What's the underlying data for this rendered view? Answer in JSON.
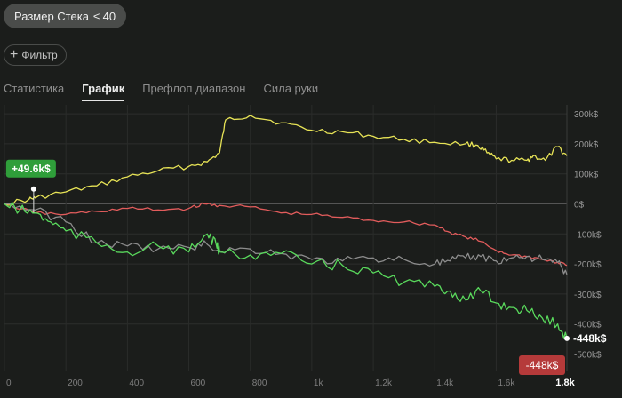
{
  "filter_pill": {
    "label": "Размер Стека",
    "op": "≤ 40"
  },
  "filter_button": {
    "icon": "plus-icon",
    "label": "Фильтр"
  },
  "tabs": [
    {
      "label": "Статистика",
      "active": false
    },
    {
      "label": "График",
      "active": true
    },
    {
      "label": "Префлоп диапазон",
      "active": false
    },
    {
      "label": "Сила руки",
      "active": false
    }
  ],
  "chart_data": {
    "type": "line",
    "x_ticks": [
      "0",
      "200",
      "400",
      "600",
      "800",
      "1k",
      "1.2k",
      "1.4k",
      "1.6k"
    ],
    "x_end_label": "1.8k",
    "y_ticks": [
      "300k$",
      "200k$",
      "100k$",
      "0$",
      "-100k$",
      "-200k$",
      "-300k$",
      "-400k$",
      "-500k$"
    ],
    "xlim": [
      0,
      1830
    ],
    "ylim": [
      -540,
      330
    ],
    "colors": {
      "yellow": "#e7e356",
      "red": "#e25c5c",
      "gray": "#8c8c8c",
      "green": "#59d95c",
      "badge_green": "#2f9e3a",
      "badge_red": "#b53a3a"
    },
    "series": [
      {
        "name": "yellow",
        "x": [
          0,
          80,
          100,
          200,
          300,
          400,
          500,
          600,
          660,
          700,
          720,
          800,
          900,
          1000,
          1100,
          1200,
          1300,
          1400,
          1500,
          1540,
          1570,
          1600,
          1650,
          1700,
          1720,
          1760,
          1800,
          1830
        ],
        "y": [
          0,
          15,
          20,
          40,
          60,
          90,
          110,
          125,
          140,
          170,
          280,
          295,
          270,
          245,
          240,
          225,
          215,
          205,
          200,
          195,
          170,
          150,
          145,
          145,
          160,
          145,
          190,
          160
        ]
      },
      {
        "name": "red",
        "x": [
          0,
          100,
          200,
          300,
          400,
          500,
          600,
          650,
          700,
          800,
          900,
          1000,
          1100,
          1200,
          1300,
          1400,
          1450,
          1500,
          1550,
          1600,
          1650,
          1700,
          1750,
          1800,
          1830
        ],
        "y": [
          0,
          -30,
          -35,
          -25,
          -15,
          -20,
          -15,
          0,
          -5,
          -10,
          -30,
          -35,
          -45,
          -55,
          -60,
          -70,
          -95,
          -110,
          -125,
          -155,
          -170,
          -175,
          -185,
          -195,
          -205
        ]
      },
      {
        "name": "gray",
        "x": [
          0,
          100,
          200,
          300,
          400,
          500,
          600,
          660,
          700,
          800,
          900,
          1000,
          1100,
          1200,
          1300,
          1400,
          1450,
          1500,
          1550,
          1600,
          1650,
          1700,
          1750,
          1800,
          1830
        ],
        "y": [
          0,
          -20,
          -60,
          -130,
          -140,
          -150,
          -145,
          -135,
          -155,
          -150,
          -165,
          -185,
          -190,
          -180,
          -185,
          -200,
          -190,
          -180,
          -175,
          -190,
          -180,
          -175,
          -185,
          -195,
          -235
        ]
      },
      {
        "name": "green",
        "x": [
          0,
          50,
          100,
          150,
          200,
          300,
          400,
          500,
          600,
          660,
          690,
          700,
          800,
          900,
          1000,
          1100,
          1200,
          1300,
          1400,
          1450,
          1500,
          1550,
          1600,
          1650,
          1700,
          1750,
          1800,
          1830
        ],
        "y": [
          0,
          -20,
          -30,
          -60,
          -90,
          -130,
          -160,
          -140,
          -160,
          -100,
          -140,
          -160,
          -170,
          -165,
          -200,
          -205,
          -230,
          -260,
          -275,
          -290,
          -320,
          -290,
          -330,
          -345,
          -355,
          -380,
          -400,
          -448
        ]
      }
    ],
    "annotations": [
      {
        "label": "+49.6k$",
        "x": 95,
        "y": 49.6,
        "series": "yellow"
      },
      {
        "label": "-448k$",
        "x": 1830,
        "y": -448,
        "series": "green"
      },
      {
        "label": "-448k$",
        "x": 1830,
        "y": -448,
        "series": "green",
        "boxed": true
      }
    ]
  }
}
